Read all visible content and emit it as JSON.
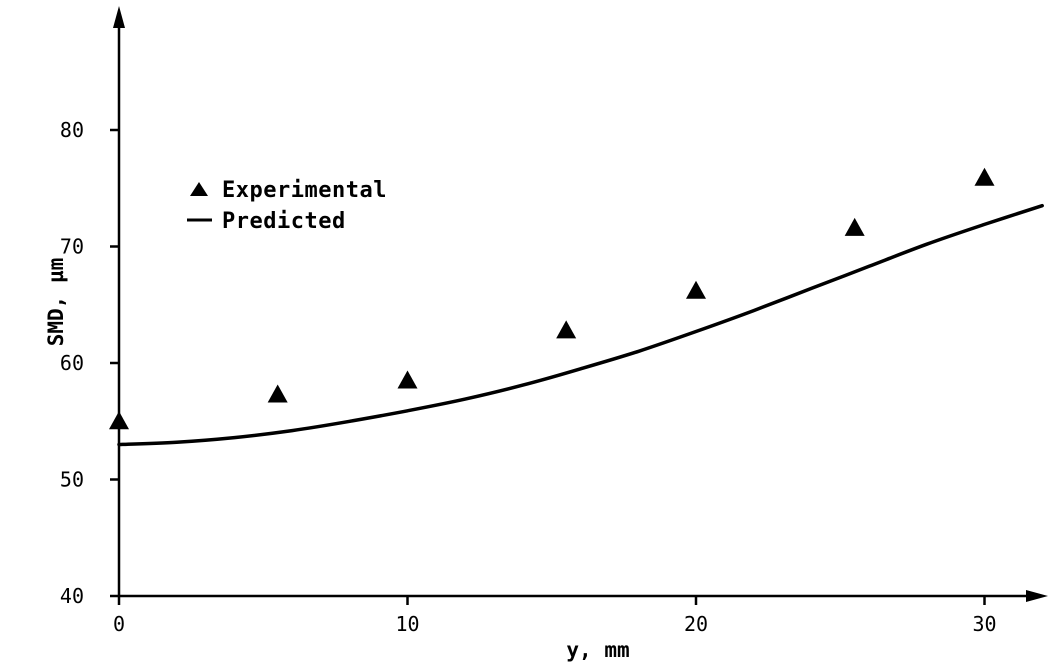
{
  "chart_data": {
    "type": "scatter",
    "title": "",
    "xlabel": "y, mm",
    "ylabel": "SMD, µm",
    "xlim": [
      0,
      32
    ],
    "ylim": [
      40,
      90
    ],
    "x_ticks": [
      0,
      10,
      20,
      30
    ],
    "y_ticks": [
      40,
      50,
      60,
      70,
      80
    ],
    "x_tick_labels": [
      "0",
      "10",
      "20",
      "30"
    ],
    "y_tick_labels": [
      "40",
      "50",
      "60",
      "70",
      "80"
    ],
    "grid": false,
    "legend_position": "upper-left",
    "series": [
      {
        "name": "Experimental",
        "kind": "scatter",
        "marker": "triangle",
        "x": [
          0,
          5.5,
          10,
          15.5,
          20,
          25.5,
          30
        ],
        "y": [
          55,
          57.3,
          58.5,
          62.8,
          66.2,
          71.6,
          75.9
        ]
      },
      {
        "name": "Predicted",
        "kind": "line",
        "x": [
          0,
          2,
          4,
          6,
          8,
          10,
          12,
          14,
          16,
          18,
          20,
          22,
          24,
          26,
          28,
          30,
          32
        ],
        "y": [
          53.0,
          53.2,
          53.6,
          54.2,
          55.0,
          55.9,
          56.9,
          58.1,
          59.5,
          61.0,
          62.7,
          64.5,
          66.4,
          68.3,
          70.2,
          71.9,
          73.5
        ]
      }
    ]
  }
}
